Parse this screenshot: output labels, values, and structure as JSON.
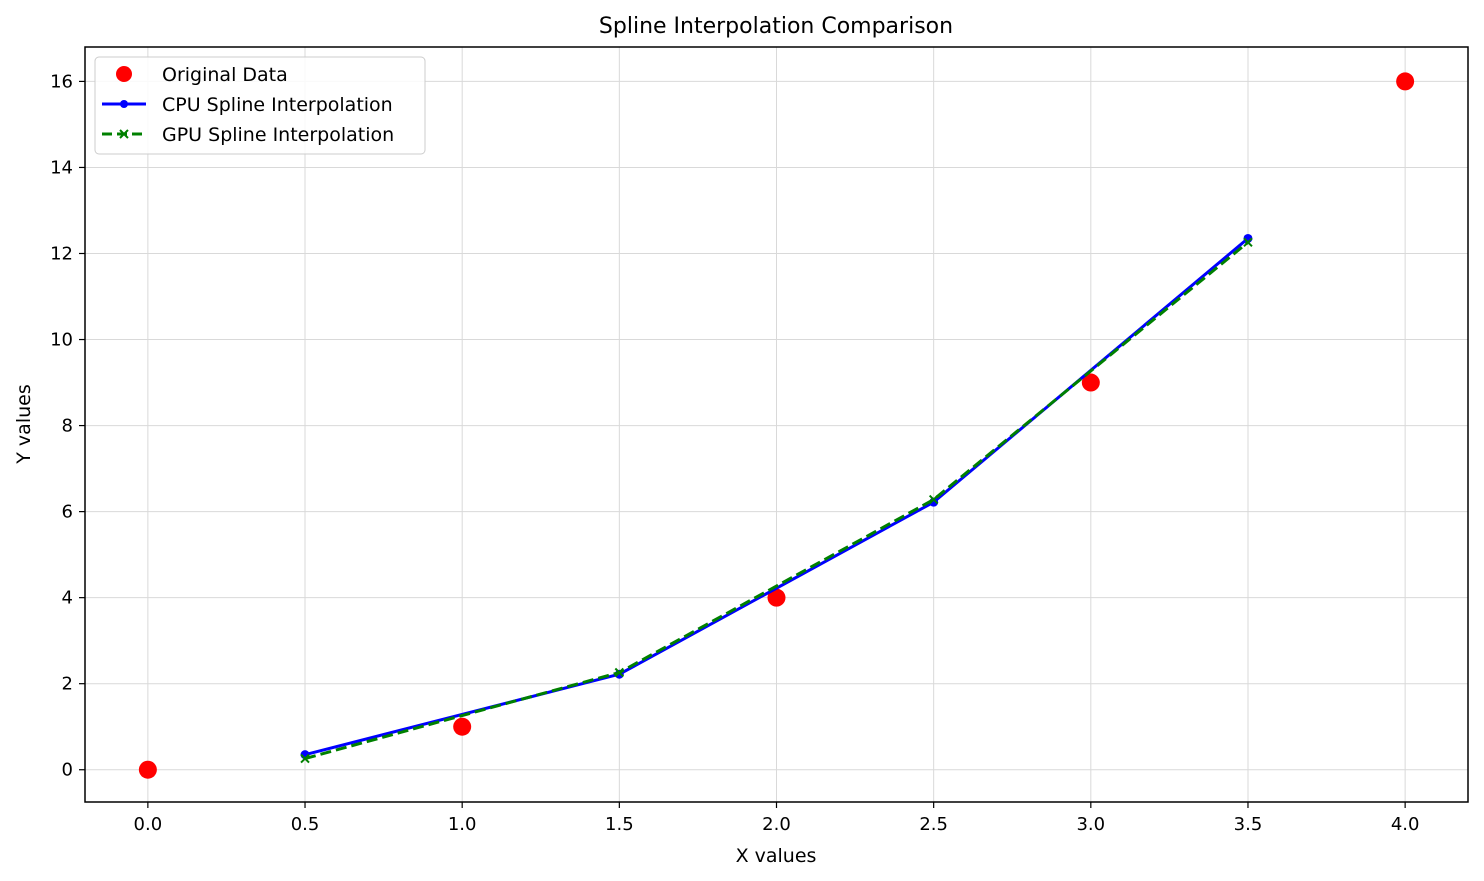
{
  "chart_data": {
    "type": "line",
    "title": "Spline Interpolation Comparison",
    "xlabel": "X values",
    "ylabel": "Y values",
    "xlim": [
      -0.2,
      4.2
    ],
    "ylim": [
      -0.75,
      16.8
    ],
    "x_ticks": [
      0.0,
      0.5,
      1.0,
      1.5,
      2.0,
      2.5,
      3.0,
      3.5,
      4.0
    ],
    "x_tick_labels": [
      "0.0",
      "0.5",
      "1.0",
      "1.5",
      "2.0",
      "2.5",
      "3.0",
      "3.5",
      "4.0"
    ],
    "y_ticks": [
      0,
      2,
      4,
      6,
      8,
      10,
      12,
      14,
      16
    ],
    "y_tick_labels": [
      "0",
      "2",
      "4",
      "6",
      "8",
      "10",
      "12",
      "14",
      "16"
    ],
    "grid": true,
    "legend_position": "top-left",
    "series": [
      {
        "name": "Original Data",
        "style": "scatter",
        "color": "#ff0000",
        "x": [
          0,
          1,
          2,
          3,
          4
        ],
        "y": [
          0,
          1,
          4,
          9,
          16
        ]
      },
      {
        "name": "CPU Spline Interpolation",
        "style": "solid",
        "marker": "dot",
        "color": "#0000ff",
        "x": [
          0.5,
          1.5,
          2.5,
          3.5
        ],
        "y": [
          0.35,
          2.22,
          6.22,
          12.35
        ]
      },
      {
        "name": "GPU Spline Interpolation",
        "style": "dashed",
        "marker": "x",
        "color": "#008000",
        "x": [
          0.5,
          1.5,
          2.5,
          3.5
        ],
        "y": [
          0.26,
          2.26,
          6.28,
          12.26
        ]
      }
    ]
  }
}
